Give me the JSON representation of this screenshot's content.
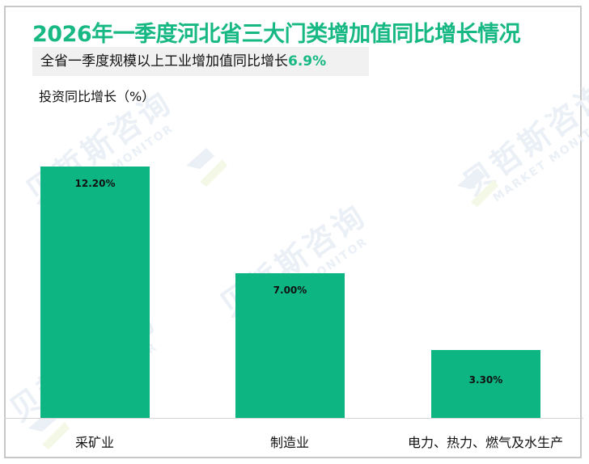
{
  "title": "2026年一季度河北省三大门类增加值同比增长情况",
  "subtitle": {
    "text": "全省一季度规模以上工业增加值同比增长",
    "highlight": "6.9%"
  },
  "watermark": {
    "cn": "贝哲斯咨询",
    "en": "MARKET MONITOR"
  },
  "colors": {
    "accent": "#17b883",
    "bar": "#0db582",
    "subtitle_bg": "#f1f1f1"
  },
  "chart_data": {
    "type": "bar",
    "title": "2026年一季度河北省三大门类增加值同比增长情况",
    "subtitle": "全省一季度规模以上工业增加值同比增长6.9%",
    "ylabel": "投资同比增长（%）",
    "xlabel": "",
    "categories": [
      "采矿业",
      "制造业",
      "电力、热力、燃气及水生产"
    ],
    "values": [
      12.2,
      7.0,
      3.3
    ],
    "data_labels": [
      "12.20%",
      "7.00%",
      "3.30%"
    ],
    "ylim": [
      0,
      14
    ],
    "grid": false,
    "legend": "none"
  }
}
